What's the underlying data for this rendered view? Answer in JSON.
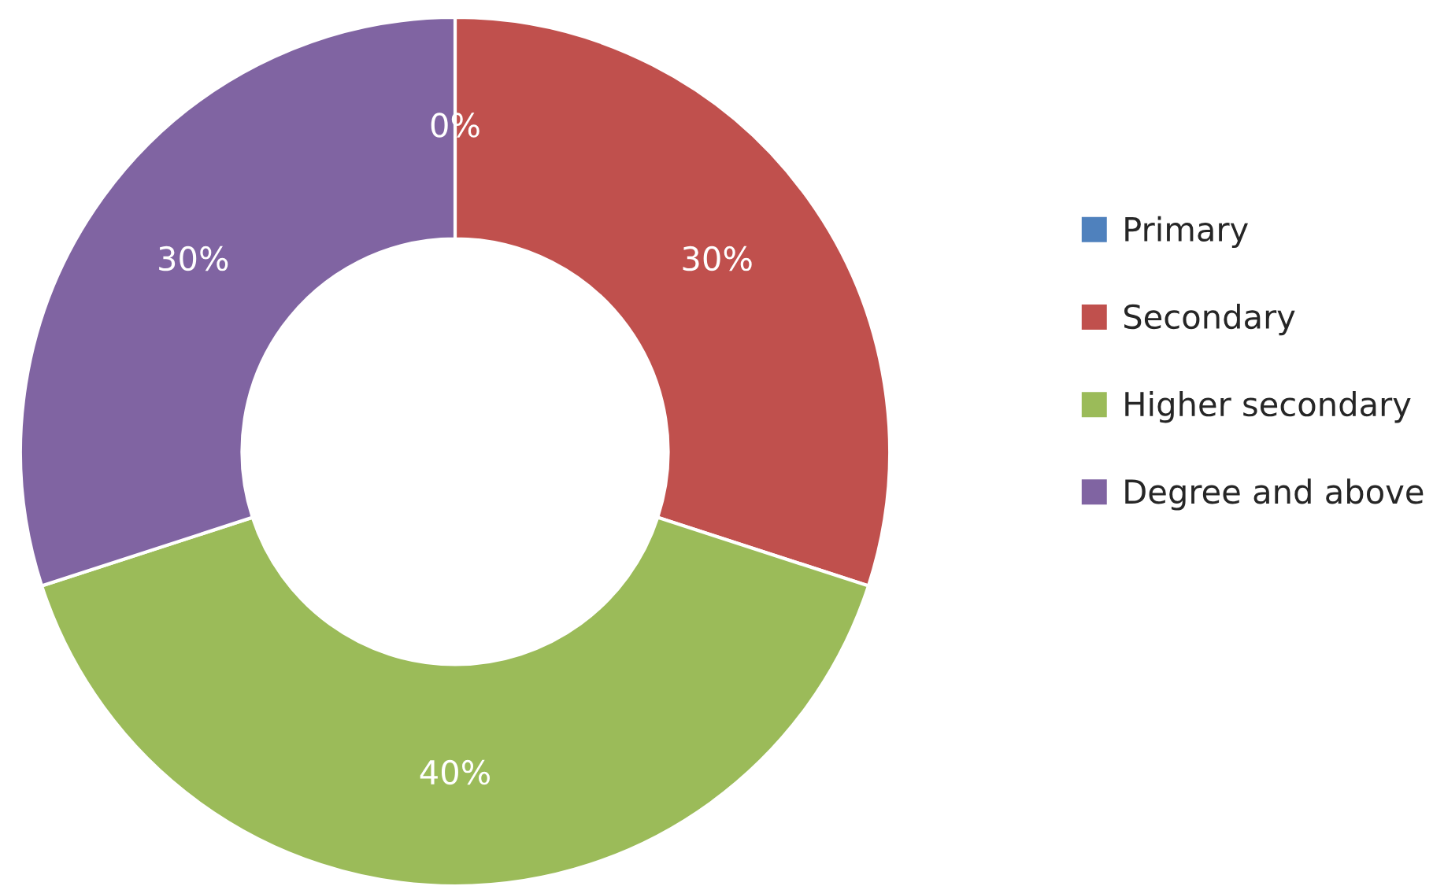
{
  "chart_data": {
    "type": "donut",
    "categories": [
      "Primary",
      "Secondary",
      "Higher secondary",
      "Degree and above"
    ],
    "values": [
      0,
      30,
      40,
      30
    ],
    "colors": [
      "#4f81bd",
      "#c0504d",
      "#9bbb59",
      "#8064a2"
    ],
    "value_labels": [
      "0%",
      "30%",
      "40%",
      "30%"
    ],
    "legend": "right"
  }
}
